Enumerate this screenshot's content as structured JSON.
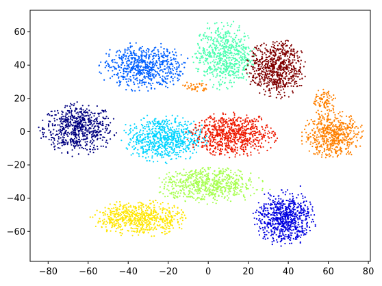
{
  "chart_data": {
    "type": "scatter",
    "title": "",
    "xlabel": "",
    "ylabel": "",
    "xlim": [
      -89,
      81
    ],
    "ylim": [
      -78,
      73
    ],
    "xticks": [
      -80,
      -60,
      -40,
      -20,
      0,
      20,
      40,
      60,
      80
    ],
    "yticks": [
      -60,
      -40,
      -20,
      0,
      20,
      40,
      60
    ],
    "xtick_labels": [
      "−80",
      "−60",
      "−40",
      "−20",
      "0",
      "20",
      "40",
      "60",
      "80"
    ],
    "ytick_labels": [
      "−60",
      "−40",
      "−20",
      "0",
      "20",
      "40",
      "60"
    ],
    "grid": false,
    "legend": "none",
    "series": [
      {
        "color": "#000080",
        "cx": -65,
        "cy": 2,
        "sx": 8.5,
        "sy": 7,
        "n": 650
      },
      {
        "color": "#0060ff",
        "cx": -32,
        "cy": 39,
        "sx": 10,
        "sy": 6.5,
        "n": 650
      },
      {
        "color": "#00d4ff",
        "cx": -22,
        "cy": -4,
        "sx": 9.5,
        "sy": 6.5,
        "n": 700
      },
      {
        "color": "#4dffb0",
        "cx": 8,
        "cy": 46,
        "sx": 7,
        "sy": 9,
        "n": 650
      },
      {
        "color": "#a8ff50",
        "cx": 0,
        "cy": -32,
        "sx": 12,
        "sy": 5,
        "n": 650
      },
      {
        "color": "#ffe600",
        "cx": -34,
        "cy": -52,
        "sx": 11,
        "sy": 4.8,
        "n": 650
      },
      {
        "color": "#ff8000",
        "cx": 62,
        "cy": -2,
        "sx": 7,
        "sy": 6.5,
        "n": 550
      },
      {
        "color": "#ff8000",
        "cx": 58,
        "cy": 18,
        "sx": 3,
        "sy": 3.5,
        "n": 90
      },
      {
        "color": "#ff8000",
        "cx": -6,
        "cy": 27,
        "sx": 3,
        "sy": 1.5,
        "n": 40
      },
      {
        "color": "#ee1a00",
        "cx": 12,
        "cy": -2,
        "sx": 10,
        "sy": 6,
        "n": 750
      },
      {
        "color": "#0000e0",
        "cx": 38,
        "cy": -52,
        "sx": 7,
        "sy": 7.5,
        "n": 700
      },
      {
        "color": "#800000",
        "cx": 34,
        "cy": 38,
        "sx": 6.5,
        "sy": 8,
        "n": 700
      }
    ]
  }
}
